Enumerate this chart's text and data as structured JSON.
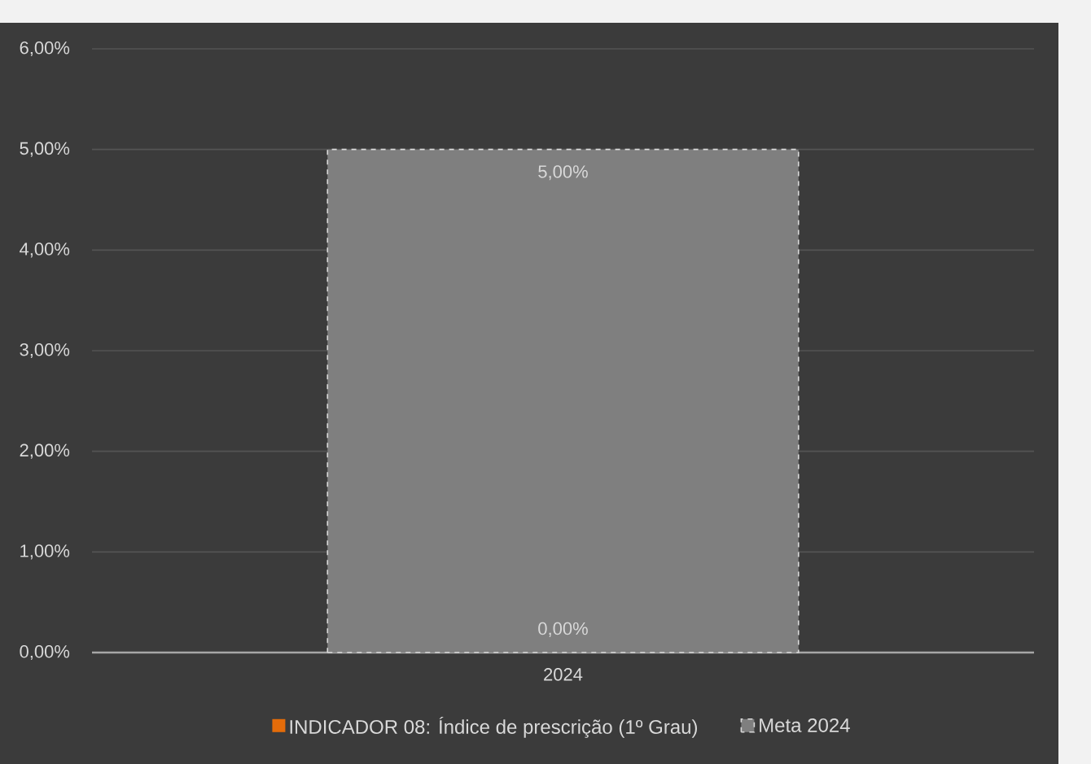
{
  "chart_data": {
    "type": "bar",
    "categories": [
      "2024"
    ],
    "series": [
      {
        "name": "INDICADOR 08: Índice de prescrição (1º Grau)",
        "color": "#e46c0a",
        "values": [
          0
        ],
        "value_labels": [
          "0,00%"
        ]
      },
      {
        "name": "Meta 2024",
        "color": "#7f7f7f",
        "values": [
          5
        ],
        "value_labels": [
          "5,00%"
        ],
        "line_style": "dashed"
      }
    ],
    "ylim": [
      0,
      6
    ],
    "yticks": [
      {
        "value": 0,
        "label": "0,00%"
      },
      {
        "value": 1,
        "label": "1,00%"
      },
      {
        "value": 2,
        "label": "2,00%"
      },
      {
        "value": 3,
        "label": "3,00%"
      },
      {
        "value": 4,
        "label": "4,00%"
      },
      {
        "value": 5,
        "label": "5,00%"
      },
      {
        "value": 6,
        "label": "6,00%"
      }
    ],
    "grid": "y",
    "legend": "bottom"
  }
}
